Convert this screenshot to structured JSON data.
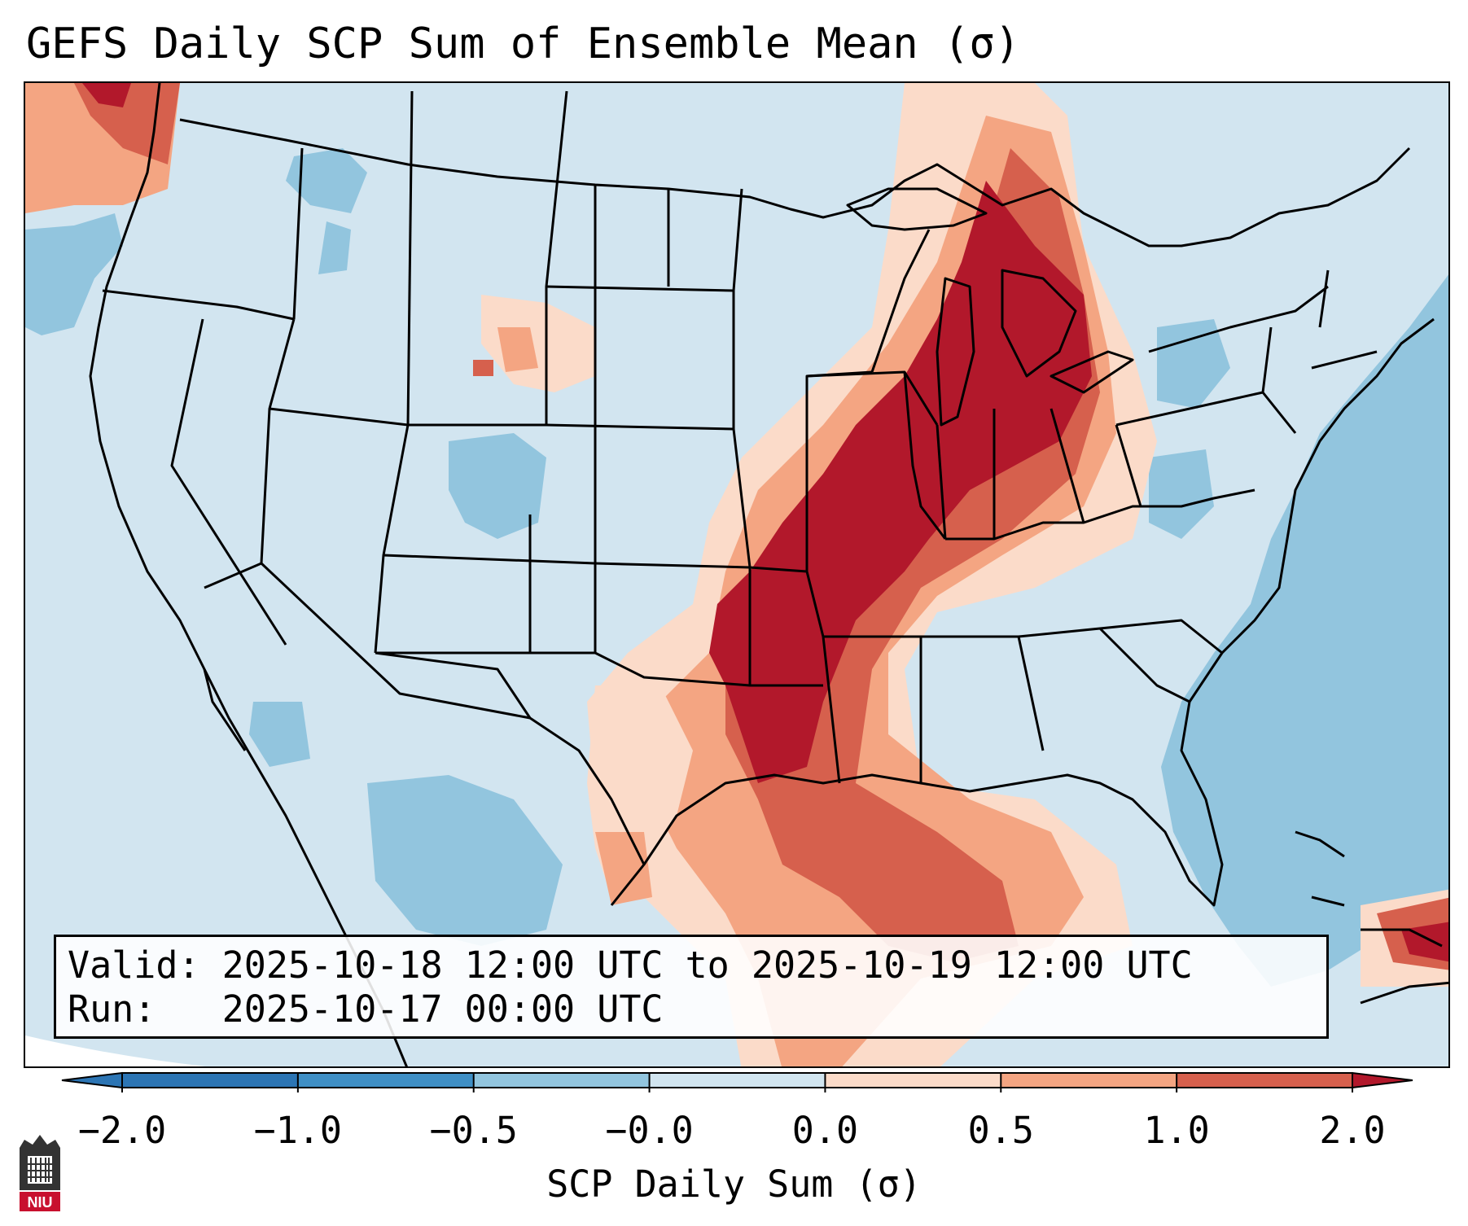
{
  "title": "GEFS Daily SCP Sum of Ensemble Mean (σ)",
  "info": {
    "valid_label": "Valid:",
    "valid_range": "2025-10-18 12:00 UTC to 2025-10-19 12:00 UTC",
    "run_label": "Run:",
    "run_time": "2025-10-17 00:00 UTC"
  },
  "colorbar": {
    "label": "SCP Daily Sum (σ)",
    "ticks": [
      "−2.0",
      "−1.0",
      "−0.5",
      "−0.0",
      "0.0",
      "0.5",
      "1.0",
      "2.0"
    ],
    "bin_colors": [
      "#3f8fc5",
      "#92c5de",
      "#d1e5f0",
      "#fbdbc9",
      "#f4a582",
      "#d6604d"
    ],
    "under_color": "#2c75b4",
    "over_color": "#b2182b"
  },
  "map": {
    "background_color": "#d2e5f0",
    "ocean_color": "#92c5de",
    "outline_color": "#000000"
  },
  "logo": {
    "text": "NIU",
    "color": "#c8102e"
  }
}
